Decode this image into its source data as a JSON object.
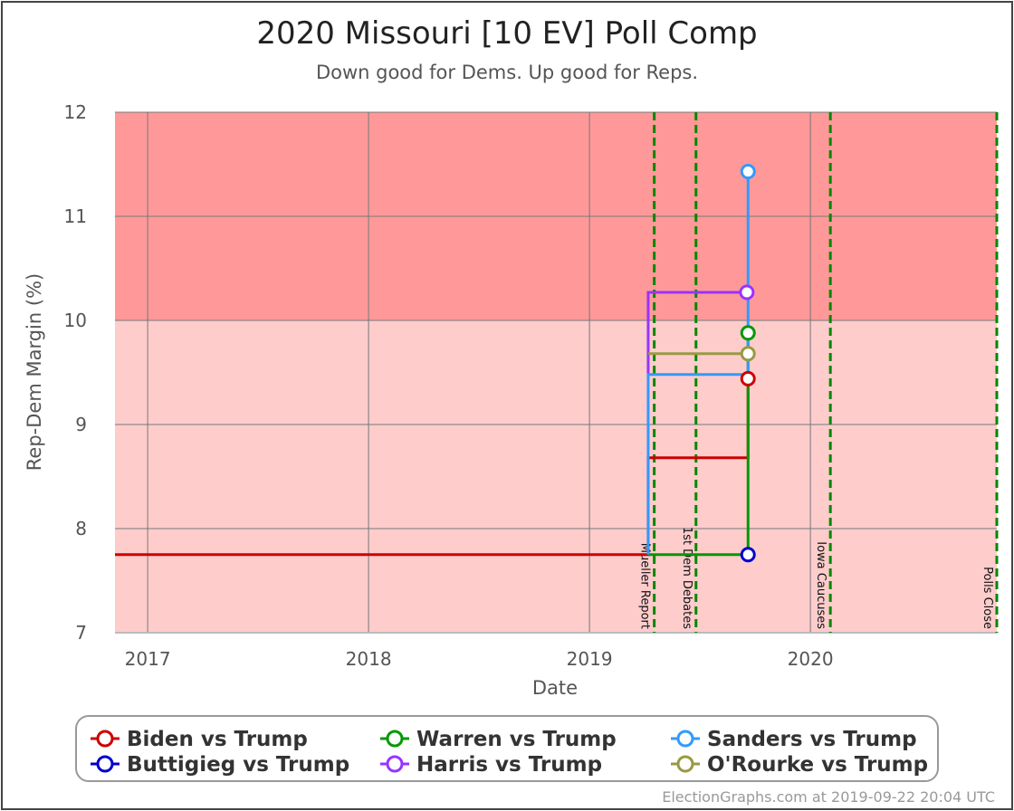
{
  "chart_data": {
    "type": "line",
    "title": "2020 Missouri [10 EV] Poll Comp",
    "subtitle": "Down good for Dems. Up good for Reps.",
    "xlabel": "Date",
    "ylabel": "Rep-Dem Margin (%)",
    "xlim": [
      "2016-11-08",
      "2020-11-04"
    ],
    "ylim": [
      7,
      12
    ],
    "x_ticks": [
      {
        "date": "2017-01-01",
        "label": "2017"
      },
      {
        "date": "2018-01-01",
        "label": "2018"
      },
      {
        "date": "2019-01-01",
        "label": "2019"
      },
      {
        "date": "2020-01-01",
        "label": "2020"
      }
    ],
    "y_ticks": [
      7,
      8,
      9,
      10,
      11,
      12
    ],
    "grid": true,
    "bands": [
      {
        "from": 7,
        "to": 10,
        "color": "#ffcccc"
      },
      {
        "from": 10,
        "to": 12,
        "color": "#ff9999"
      }
    ],
    "events": [
      {
        "date": "2019-04-18",
        "label": "Mueller Report"
      },
      {
        "date": "2019-06-26",
        "label": "1st Dem Debates"
      },
      {
        "date": "2020-02-03",
        "label": "Iowa Caucuses"
      },
      {
        "date": "2020-11-04",
        "label": "Polls Close"
      }
    ],
    "series": [
      {
        "name": "Biden vs Trump",
        "color": "#cc0000",
        "points": [
          [
            "2016-11-08",
            7.75
          ],
          [
            "2019-04-08",
            7.75
          ],
          [
            "2019-04-08",
            8.68
          ],
          [
            "2019-09-20",
            8.68
          ],
          [
            "2019-09-20",
            9.44
          ]
        ]
      },
      {
        "name": "Buttigieg vs Trump",
        "color": "#0000cc",
        "points": [
          [
            "2019-09-20",
            7.75
          ]
        ]
      },
      {
        "name": "Warren vs Trump",
        "color": "#009900",
        "points": [
          [
            "2019-04-08",
            7.75
          ],
          [
            "2019-09-20",
            7.75
          ],
          [
            "2019-09-20",
            9.88
          ]
        ]
      },
      {
        "name": "Harris vs Trump",
        "color": "#9933ff",
        "points": [
          [
            "2019-04-08",
            9.49
          ],
          [
            "2019-04-08",
            10.27
          ],
          [
            "2019-09-18",
            10.27
          ]
        ]
      },
      {
        "name": "Sanders vs Trump",
        "color": "#3399ff",
        "points": [
          [
            "2019-04-08",
            7.75
          ],
          [
            "2019-04-08",
            9.48
          ],
          [
            "2019-09-20",
            9.48
          ],
          [
            "2019-09-20",
            11.43
          ]
        ]
      },
      {
        "name": "O'Rourke vs Trump",
        "color": "#999944",
        "points": [
          [
            "2019-04-08",
            9.68
          ],
          [
            "2019-09-20",
            9.68
          ]
        ]
      }
    ],
    "legend_position": "bottom"
  },
  "credit": "ElectionGraphs.com at 2019-09-22 20:04 UTC"
}
